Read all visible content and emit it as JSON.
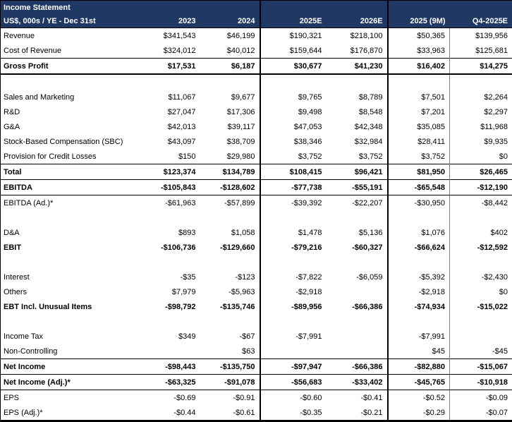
{
  "header": {
    "title": "Income Statement",
    "subtitle": "US$, 000s / YE - Dec 31st"
  },
  "colors": {
    "header_bg": "#1F3864",
    "header_text": "#FFFFFF",
    "group_divider": "#000000",
    "minor_divider": "#808080"
  },
  "table": {
    "columns": [
      "2023",
      "2024",
      "2025E",
      "2026E",
      "2025 (9M)",
      "Q4-2025E"
    ],
    "rows": [
      {
        "label": "Revenue",
        "bold": false,
        "borders": [],
        "values": [
          "$341,543",
          "$46,199",
          "$190,321",
          "$218,100",
          "$50,365",
          "$139,956"
        ]
      },
      {
        "label": "Cost of Revenue",
        "bold": false,
        "borders": [],
        "values": [
          "$324,012",
          "$40,012",
          "$159,644",
          "$176,870",
          "$33,963",
          "$125,681"
        ]
      },
      {
        "label": "Gross Profit",
        "bold": true,
        "borders": [
          "top",
          "thick-bottom"
        ],
        "values": [
          "$17,531",
          "$6,187",
          "$30,677",
          "$41,230",
          "$16,402",
          "$14,275"
        ]
      },
      {
        "blank": true
      },
      {
        "label": "Sales and Marketing",
        "bold": false,
        "borders": [],
        "values": [
          "$11,067",
          "$9,677",
          "$9,765",
          "$8,789",
          "$7,501",
          "$2,264"
        ]
      },
      {
        "label": "R&D",
        "bold": false,
        "borders": [],
        "values": [
          "$27,047",
          "$17,306",
          "$9,498",
          "$8,548",
          "$7,201",
          "$2,297"
        ]
      },
      {
        "label": "G&A",
        "bold": false,
        "borders": [],
        "values": [
          "$42,013",
          "$39,117",
          "$47,053",
          "$42,348",
          "$35,085",
          "$11,968"
        ]
      },
      {
        "label": "Stock-Based Compensation (SBC)",
        "bold": false,
        "borders": [],
        "values": [
          "$43,097",
          "$38,709",
          "$38,346",
          "$32,984",
          "$28,411",
          "$9,935"
        ]
      },
      {
        "label": "Provision for Credit Losses",
        "bold": false,
        "borders": [],
        "values": [
          "$150",
          "$29,980",
          "$3,752",
          "$3,752",
          "$3,752",
          "$0"
        ]
      },
      {
        "label": "Total",
        "bold": true,
        "borders": [
          "top"
        ],
        "values": [
          "$123,374",
          "$134,789",
          "$108,415",
          "$96,421",
          "$81,950",
          "$26,465"
        ]
      },
      {
        "label": "EBITDA",
        "bold": true,
        "borders": [
          "top",
          "bottom"
        ],
        "values": [
          "-$105,843",
          "-$128,602",
          "-$77,738",
          "-$55,191",
          "-$65,548",
          "-$12,190"
        ]
      },
      {
        "label": "EBITDA (Ad.)*",
        "bold": false,
        "borders": [],
        "values": [
          "-$61,963",
          "-$57,899",
          "-$39,392",
          "-$22,207",
          "-$30,950",
          "-$8,442"
        ]
      },
      {
        "blank": true
      },
      {
        "label": "D&A",
        "bold": false,
        "borders": [],
        "values": [
          "$893",
          "$1,058",
          "$1,478",
          "$5,136",
          "$1,076",
          "$402"
        ]
      },
      {
        "label": "EBIT",
        "bold": true,
        "borders": [],
        "values": [
          "-$106,736",
          "-$129,660",
          "-$79,216",
          "-$60,327",
          "-$66,624",
          "-$12,592"
        ]
      },
      {
        "blank": true
      },
      {
        "label": "Interest",
        "bold": false,
        "borders": [],
        "values": [
          "-$35",
          "-$123",
          "-$7,822",
          "-$6,059",
          "-$5,392",
          "-$2,430"
        ]
      },
      {
        "label": "Others",
        "bold": false,
        "borders": [],
        "values": [
          "$7,979",
          "-$5,963",
          "-$2,918",
          "",
          "-$2,918",
          "$0"
        ]
      },
      {
        "label": "EBT Incl. Unusual Items",
        "bold": true,
        "borders": [],
        "values": [
          "-$98,792",
          "-$135,746",
          "-$89,956",
          "-$66,386",
          "-$74,934",
          "-$15,022"
        ]
      },
      {
        "blank": true
      },
      {
        "label": "Income Tax",
        "bold": false,
        "borders": [],
        "values": [
          "$349",
          "-$67",
          "-$7,991",
          "",
          "-$7,991",
          ""
        ]
      },
      {
        "label": "Non-Controlling",
        "bold": false,
        "borders": [],
        "values": [
          "",
          "$63",
          "",
          "",
          "$45",
          "-$45"
        ]
      },
      {
        "label": "Net Income",
        "bold": true,
        "borders": [
          "top",
          "bottom"
        ],
        "values": [
          "-$98,443",
          "-$135,750",
          "-$97,947",
          "-$66,386",
          "-$82,880",
          "-$15,067"
        ]
      },
      {
        "label": "Net Income (Adj.)*",
        "bold": true,
        "borders": [
          "bottom"
        ],
        "values": [
          "-$63,325",
          "-$91,078",
          "-$56,683",
          "-$33,402",
          "-$45,765",
          "-$10,918"
        ]
      },
      {
        "label": "EPS",
        "bold": false,
        "borders": [],
        "values": [
          "-$0.69",
          "-$0.91",
          "-$0.60",
          "-$0.41",
          "-$0.52",
          "-$0.09"
        ]
      },
      {
        "label": "EPS (Adj.)*",
        "bold": false,
        "borders": [],
        "values": [
          "-$0.44",
          "-$0.61",
          "-$0.35",
          "-$0.21",
          "-$0.29",
          "-$0.07"
        ]
      }
    ]
  }
}
